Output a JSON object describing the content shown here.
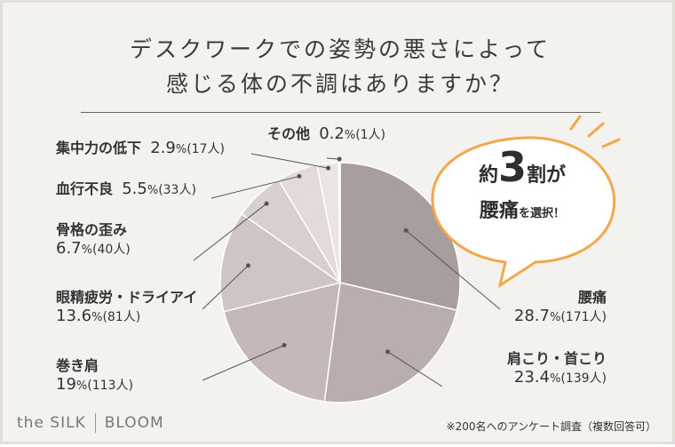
{
  "title": {
    "line1": "デスクワークでの姿勢の悪さによって",
    "line2": "感じる体の不調はありますか？"
  },
  "chart_data": {
    "type": "pie",
    "slices": [
      {
        "name": "腰痛",
        "percent": 28.7,
        "percent_text": "28.7",
        "count_text": "(171人)",
        "color": "#a89e9c"
      },
      {
        "name": "肩こり・首こり",
        "percent": 23.4,
        "percent_text": "23.4",
        "count_text": "(139人)",
        "color": "#b9aeab"
      },
      {
        "name": "巻き肩",
        "percent": 19,
        "percent_text": "19",
        "count_text": "(113人)",
        "color": "#c4b9b6"
      },
      {
        "name": "眼精疲労・ドライアイ",
        "percent": 13.6,
        "percent_text": "13.6",
        "count_text": "(81人)",
        "color": "#cfc6c3"
      },
      {
        "name": "骨格の歪み",
        "percent": 6.7,
        "percent_text": "6.7",
        "count_text": "(40人)",
        "color": "#d8d0cd"
      },
      {
        "name": "血行不良",
        "percent": 5.5,
        "percent_text": "5.5",
        "count_text": "(33人)",
        "color": "#e2dbd8"
      },
      {
        "name": "集中力の低下",
        "percent": 2.9,
        "percent_text": "2.9",
        "count_text": "(17人)",
        "color": "#ebe5e2"
      },
      {
        "name": "その他",
        "percent": 0.2,
        "percent_text": "0.2",
        "count_text": "(1人)",
        "color": "#f1ecea"
      }
    ],
    "unit": "%",
    "start": "12 o'clock, clockwise"
  },
  "callout": {
    "prefix": "約",
    "number": "3",
    "suffix1": "割",
    "suffix2": "が",
    "highlight": "腰痛",
    "tail": "を選択！",
    "border_color": "#f2a84a",
    "ray_color": "#f2a84a"
  },
  "brand": {
    "left": "the SILK",
    "right": "BLOOM"
  },
  "footnote": "※200名へのアンケート調査（複数回答可）"
}
